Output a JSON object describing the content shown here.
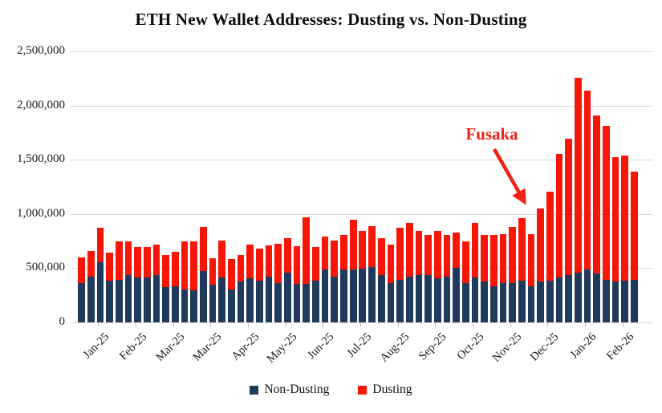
{
  "title": "ETH New Wallet Addresses: Dusting vs. Non-Dusting",
  "annotation": {
    "text": "Fusaka"
  },
  "colors": {
    "non_dusting": "#1f3a5c",
    "dusting": "#f81607",
    "annotation_red": "#f32015",
    "gridline": "#d9d9d9",
    "background": "#ffffff"
  },
  "chart_data": {
    "type": "bar",
    "stacked": true,
    "title": "ETH New Wallet Addresses: Dusting vs. Non-Dusting",
    "x_unit": "week",
    "x_tick_labels": [
      "Jan-25",
      "Feb-25",
      "Mar-25",
      "Mar-25",
      "Apr-25",
      "May-25",
      "Jun-25",
      "Jul-25",
      "Aug-25",
      "Sep-25",
      "Oct-25",
      "Nov-25",
      "Dec-25",
      "Jan-26",
      "Feb-26"
    ],
    "x_ticks_every_n_bars": 4,
    "ylim": [
      0,
      2500000
    ],
    "grid": "horizontal",
    "legend_position": "bottom",
    "y_ticks": [
      {
        "value": 0,
        "label": "0"
      },
      {
        "value": 500000,
        "label": "500,000"
      },
      {
        "value": 1000000,
        "label": "1,000,000"
      },
      {
        "value": 1500000,
        "label": "1,500,000"
      },
      {
        "value": 2000000,
        "label": "2,000,000"
      },
      {
        "value": 2500000,
        "label": "2,500,000"
      }
    ],
    "series": [
      {
        "name": "Non-Dusting",
        "color": "#1f3a5c",
        "values": [
          360000,
          425000,
          555000,
          385000,
          390000,
          435000,
          415000,
          415000,
          435000,
          325000,
          335000,
          305000,
          295000,
          470000,
          345000,
          415000,
          305000,
          375000,
          410000,
          385000,
          420000,
          365000,
          460000,
          355000,
          355000,
          385000,
          485000,
          425000,
          485000,
          490000,
          495000,
          510000,
          435000,
          365000,
          390000,
          425000,
          435000,
          440000,
          410000,
          420000,
          500000,
          365000,
          415000,
          375000,
          335000,
          360000,
          365000,
          385000,
          335000,
          375000,
          385000,
          415000,
          440000,
          460000,
          490000,
          450000,
          390000,
          380000,
          385000,
          390000
        ]
      },
      {
        "name": "Dusting",
        "color": "#f81607",
        "values": [
          240000,
          230000,
          320000,
          255000,
          355000,
          310000,
          280000,
          280000,
          280000,
          295000,
          315000,
          445000,
          450000,
          410000,
          245000,
          340000,
          280000,
          250000,
          310000,
          295000,
          290000,
          360000,
          320000,
          350000,
          615000,
          310000,
          305000,
          330000,
          320000,
          455000,
          350000,
          380000,
          340000,
          355000,
          480000,
          490000,
          405000,
          370000,
          430000,
          385000,
          330000,
          380000,
          500000,
          435000,
          475000,
          455000,
          515000,
          580000,
          480000,
          675000,
          820000,
          1135000,
          1255000,
          1795000,
          1650000,
          1460000,
          1420000,
          1145000,
          1155000,
          1000000
        ]
      }
    ],
    "annotation": {
      "text": "Fusaka",
      "points_to_x_label": "Dec-25"
    }
  }
}
